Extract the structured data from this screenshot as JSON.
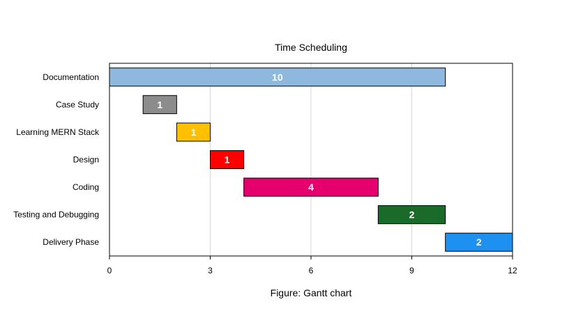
{
  "chart_data": {
    "type": "bar",
    "orientation": "horizontal",
    "title": "Time Scheduling",
    "caption": "Figure: Gantt chart",
    "xlabel": "",
    "ylabel": "",
    "xlim": [
      0,
      12
    ],
    "xticks": [
      0,
      3,
      6,
      9,
      12
    ],
    "grid": "vertical",
    "tasks": [
      {
        "name": "Documentation",
        "start": 0,
        "duration": 10,
        "color": "#8fb8de"
      },
      {
        "name": "Case Study",
        "start": 1,
        "duration": 1,
        "color": "#8c8c8c"
      },
      {
        "name": "Learning MERN Stack",
        "start": 2,
        "duration": 1,
        "color": "#ffc000"
      },
      {
        "name": "Design",
        "start": 3,
        "duration": 1,
        "color": "#ff0000"
      },
      {
        "name": "Coding",
        "start": 4,
        "duration": 4,
        "color": "#e6006e"
      },
      {
        "name": "Testing and Debugging",
        "start": 8,
        "duration": 2,
        "color": "#1a6b2a"
      },
      {
        "name": "Delivery Phase",
        "start": 10,
        "duration": 2,
        "color": "#1e90f0"
      }
    ]
  }
}
